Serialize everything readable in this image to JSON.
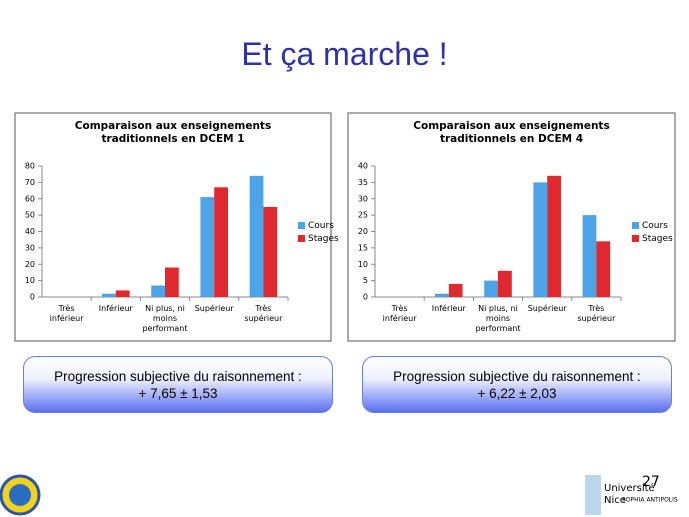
{
  "slide": {
    "title": "Et ça marche !",
    "boxes": [
      [
        "Progression subjective du raisonnement :",
        "+ 7,65 ± 1,53"
      ],
      [
        "Progression subjective du raisonnement :",
        "+ 6,22 ± 2,03"
      ]
    ],
    "page_number": "27",
    "logo": [
      "Université",
      "Nice",
      "SOPHIA ANTIPOLIS"
    ]
  },
  "chart_data": [
    {
      "type": "bar",
      "title": "Comparaison aux enseignements\ntraditionnels en DCEM 1",
      "categories": [
        "Très\ninférieur",
        "Inférieur",
        "Ni plus, ni\nmoins\nperformant",
        "Supérieur",
        "Très\nsupérieur"
      ],
      "series": [
        {
          "name": "Cours",
          "color": "#4da3e8",
          "values": [
            0,
            2,
            7,
            61,
            74
          ]
        },
        {
          "name": "Stages",
          "color": "#e0282f",
          "values": [
            0,
            4,
            18,
            67,
            55
          ]
        }
      ],
      "ylim": [
        0,
        80
      ],
      "yticks": [
        0,
        10,
        20,
        30,
        40,
        50,
        60,
        70,
        80
      ],
      "legend": "right"
    },
    {
      "type": "bar",
      "title": "Comparaison aux enseignements\ntraditionnels en DCEM 4",
      "categories": [
        "Très\ninférieur",
        "Inférieur",
        "Ni plus, ni\nmoins\nperformant",
        "Supérieur",
        "Très\nsupérieur"
      ],
      "series": [
        {
          "name": "Cours",
          "color": "#4da3e8",
          "values": [
            0,
            1,
            5,
            35,
            25
          ]
        },
        {
          "name": "Stages",
          "color": "#e0282f",
          "values": [
            0,
            4,
            8,
            37,
            17
          ]
        }
      ],
      "ylim": [
        0,
        40
      ],
      "yticks": [
        0,
        5,
        10,
        15,
        20,
        25,
        30,
        35,
        40
      ],
      "legend": "right"
    }
  ]
}
